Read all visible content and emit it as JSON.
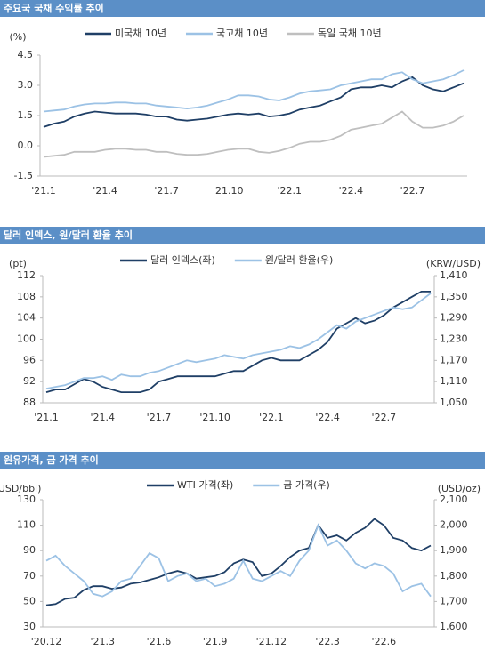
{
  "chart_data": [
    {
      "type": "line",
      "title": "주요국 국채 수익률 추이",
      "y_label": "(%)",
      "categories": [
        "'21.1",
        null,
        null,
        null,
        null,
        null,
        "'21.4",
        null,
        null,
        null,
        null,
        null,
        "'21.7",
        null,
        null,
        null,
        null,
        null,
        "'21.10",
        null,
        null,
        null,
        null,
        null,
        "'22.1",
        null,
        null,
        null,
        null,
        null,
        "'22.4",
        null,
        null,
        null,
        null,
        null,
        "'22.7",
        null,
        null,
        null,
        null,
        null
      ],
      "ylim": [
        -1.5,
        4.5
      ],
      "yticks": [
        4.5,
        {
          "value": 3,
          "label": "3.0"
        },
        1.5,
        {
          "value": 0,
          "label": "0.0"
        },
        -1.5
      ],
      "grid": false,
      "series": [
        {
          "name": "미국채 10년",
          "color": "#1f3f66",
          "values": [
            0.93,
            1.1,
            1.2,
            1.45,
            1.6,
            1.7,
            1.65,
            1.6,
            1.6,
            1.6,
            1.55,
            1.45,
            1.45,
            1.3,
            1.25,
            1.3,
            1.35,
            1.45,
            1.55,
            1.6,
            1.55,
            1.6,
            1.45,
            1.5,
            1.6,
            1.8,
            1.9,
            2.0,
            2.2,
            2.4,
            2.8,
            2.9,
            2.9,
            3.0,
            2.9,
            3.2,
            3.4,
            3.0,
            2.8,
            2.7,
            2.9,
            3.1
          ]
        },
        {
          "name": "국고채 10년",
          "color": "#9cc2e5",
          "values": [
            1.7,
            1.75,
            1.8,
            1.95,
            2.05,
            2.1,
            2.1,
            2.15,
            2.15,
            2.1,
            2.1,
            2.0,
            1.95,
            1.9,
            1.85,
            1.9,
            2.0,
            2.15,
            2.3,
            2.5,
            2.5,
            2.45,
            2.3,
            2.25,
            2.4,
            2.6,
            2.7,
            2.75,
            2.8,
            3.0,
            3.1,
            3.2,
            3.3,
            3.3,
            3.55,
            3.65,
            3.3,
            3.1,
            3.2,
            3.3,
            3.5,
            3.75
          ]
        },
        {
          "name": "독일 국채 10년",
          "color": "#bfbfbf",
          "values": [
            -0.55,
            -0.5,
            -0.45,
            -0.3,
            -0.3,
            -0.3,
            -0.2,
            -0.15,
            -0.15,
            -0.2,
            -0.2,
            -0.3,
            -0.3,
            -0.4,
            -0.45,
            -0.45,
            -0.4,
            -0.3,
            -0.2,
            -0.15,
            -0.15,
            -0.3,
            -0.35,
            -0.25,
            -0.1,
            0.1,
            0.2,
            0.2,
            0.3,
            0.5,
            0.8,
            0.9,
            1.0,
            1.1,
            1.4,
            1.7,
            1.2,
            0.9,
            0.9,
            1.0,
            1.2,
            1.5
          ]
        }
      ]
    },
    {
      "type": "line",
      "title": "달러 인덱스, 원/달러 환율 추이",
      "y_label": "(pt)",
      "y2_label": "(KRW/USD)",
      "categories": [
        "'21.1",
        null,
        null,
        null,
        null,
        null,
        "'21.4",
        null,
        null,
        null,
        null,
        null,
        "'21.7",
        null,
        null,
        null,
        null,
        null,
        "'21.10",
        null,
        null,
        null,
        null,
        null,
        "'22.1",
        null,
        null,
        null,
        null,
        null,
        "'22.4",
        null,
        null,
        null,
        null,
        null,
        "'22.7",
        null,
        null,
        null,
        null,
        null
      ],
      "ylim": [
        88,
        112
      ],
      "yticks": [
        112,
        108,
        104,
        100,
        96,
        92,
        88
      ],
      "y2lim": [
        1050,
        1410
      ],
      "y2ticks": [
        {
          "value": 1410,
          "label": "1,410"
        },
        {
          "value": 1350,
          "label": "1,350"
        },
        {
          "value": 1290,
          "label": "1,290"
        },
        {
          "value": 1230,
          "label": "1,230"
        },
        {
          "value": 1170,
          "label": "1,170"
        },
        {
          "value": 1110,
          "label": "1,110"
        },
        {
          "value": 1050,
          "label": "1,050"
        }
      ],
      "grid": false,
      "series": [
        {
          "name": "달러 인덱스(좌)",
          "color": "#1f3f66",
          "values": [
            90,
            90.5,
            90.5,
            91.5,
            92.5,
            92,
            91,
            90.5,
            90,
            90,
            90,
            90.5,
            92,
            92.5,
            93,
            93,
            93,
            93,
            93,
            93.5,
            94,
            94,
            95,
            96,
            96.5,
            96,
            96,
            96,
            97,
            98,
            99.5,
            102,
            103,
            104,
            103,
            103.5,
            104.5,
            106,
            107,
            108,
            109,
            109
          ]
        },
        {
          "name": "원/달러 환율(우)",
          "color": "#9cc2e5",
          "axis": "y2",
          "values": [
            1090,
            1095,
            1100,
            1110,
            1120,
            1120,
            1125,
            1115,
            1130,
            1125,
            1125,
            1135,
            1140,
            1150,
            1160,
            1170,
            1165,
            1170,
            1175,
            1185,
            1180,
            1175,
            1185,
            1190,
            1195,
            1200,
            1210,
            1205,
            1215,
            1230,
            1250,
            1270,
            1260,
            1280,
            1290,
            1300,
            1310,
            1320,
            1315,
            1320,
            1340,
            1360
          ]
        }
      ]
    },
    {
      "type": "line",
      "title": "원유가격, 금 가격 추이",
      "y_label": "(USD/bbl)",
      "y2_label": "(USD/oz)",
      "categories": [
        "'20.12",
        null,
        null,
        null,
        null,
        null,
        "'21.3",
        null,
        null,
        null,
        null,
        null,
        "'21.6",
        null,
        null,
        null,
        null,
        null,
        "'21.9",
        null,
        null,
        null,
        null,
        null,
        "'21.12",
        null,
        null,
        null,
        null,
        null,
        "'22.3",
        null,
        null,
        null,
        null,
        null,
        "'22.6",
        null,
        null,
        null,
        null,
        null
      ],
      "ylim": [
        30,
        130
      ],
      "yticks": [
        130,
        110,
        90,
        70,
        50,
        30
      ],
      "y2lim": [
        1600,
        2100
      ],
      "y2ticks": [
        {
          "value": 2100,
          "label": "2,100"
        },
        {
          "value": 2000,
          "label": "2,000"
        },
        {
          "value": 1900,
          "label": "1,900"
        },
        {
          "value": 1800,
          "label": "1,800"
        },
        {
          "value": 1700,
          "label": "1,700"
        },
        {
          "value": 1600,
          "label": "1,600"
        }
      ],
      "grid": false,
      "series": [
        {
          "name": "WTI 가격(좌)",
          "color": "#1f3f66",
          "values": [
            47,
            48,
            52,
            53,
            59,
            62,
            62,
            60,
            61,
            64,
            65,
            67,
            69,
            72,
            74,
            72,
            68,
            69,
            70,
            73,
            80,
            83,
            81,
            70,
            72,
            78,
            85,
            90,
            92,
            110,
            100,
            102,
            98,
            104,
            108,
            115,
            110,
            100,
            98,
            92,
            90,
            94
          ]
        },
        {
          "name": "금 가격(우)",
          "color": "#9cc2e5",
          "axis": "y2",
          "values": [
            1860,
            1880,
            1840,
            1810,
            1780,
            1730,
            1720,
            1740,
            1780,
            1790,
            1840,
            1890,
            1870,
            1780,
            1800,
            1810,
            1780,
            1790,
            1760,
            1770,
            1790,
            1860,
            1790,
            1780,
            1800,
            1820,
            1800,
            1860,
            1900,
            2000,
            1920,
            1940,
            1900,
            1850,
            1830,
            1850,
            1840,
            1810,
            1740,
            1760,
            1770,
            1720
          ]
        }
      ]
    }
  ]
}
